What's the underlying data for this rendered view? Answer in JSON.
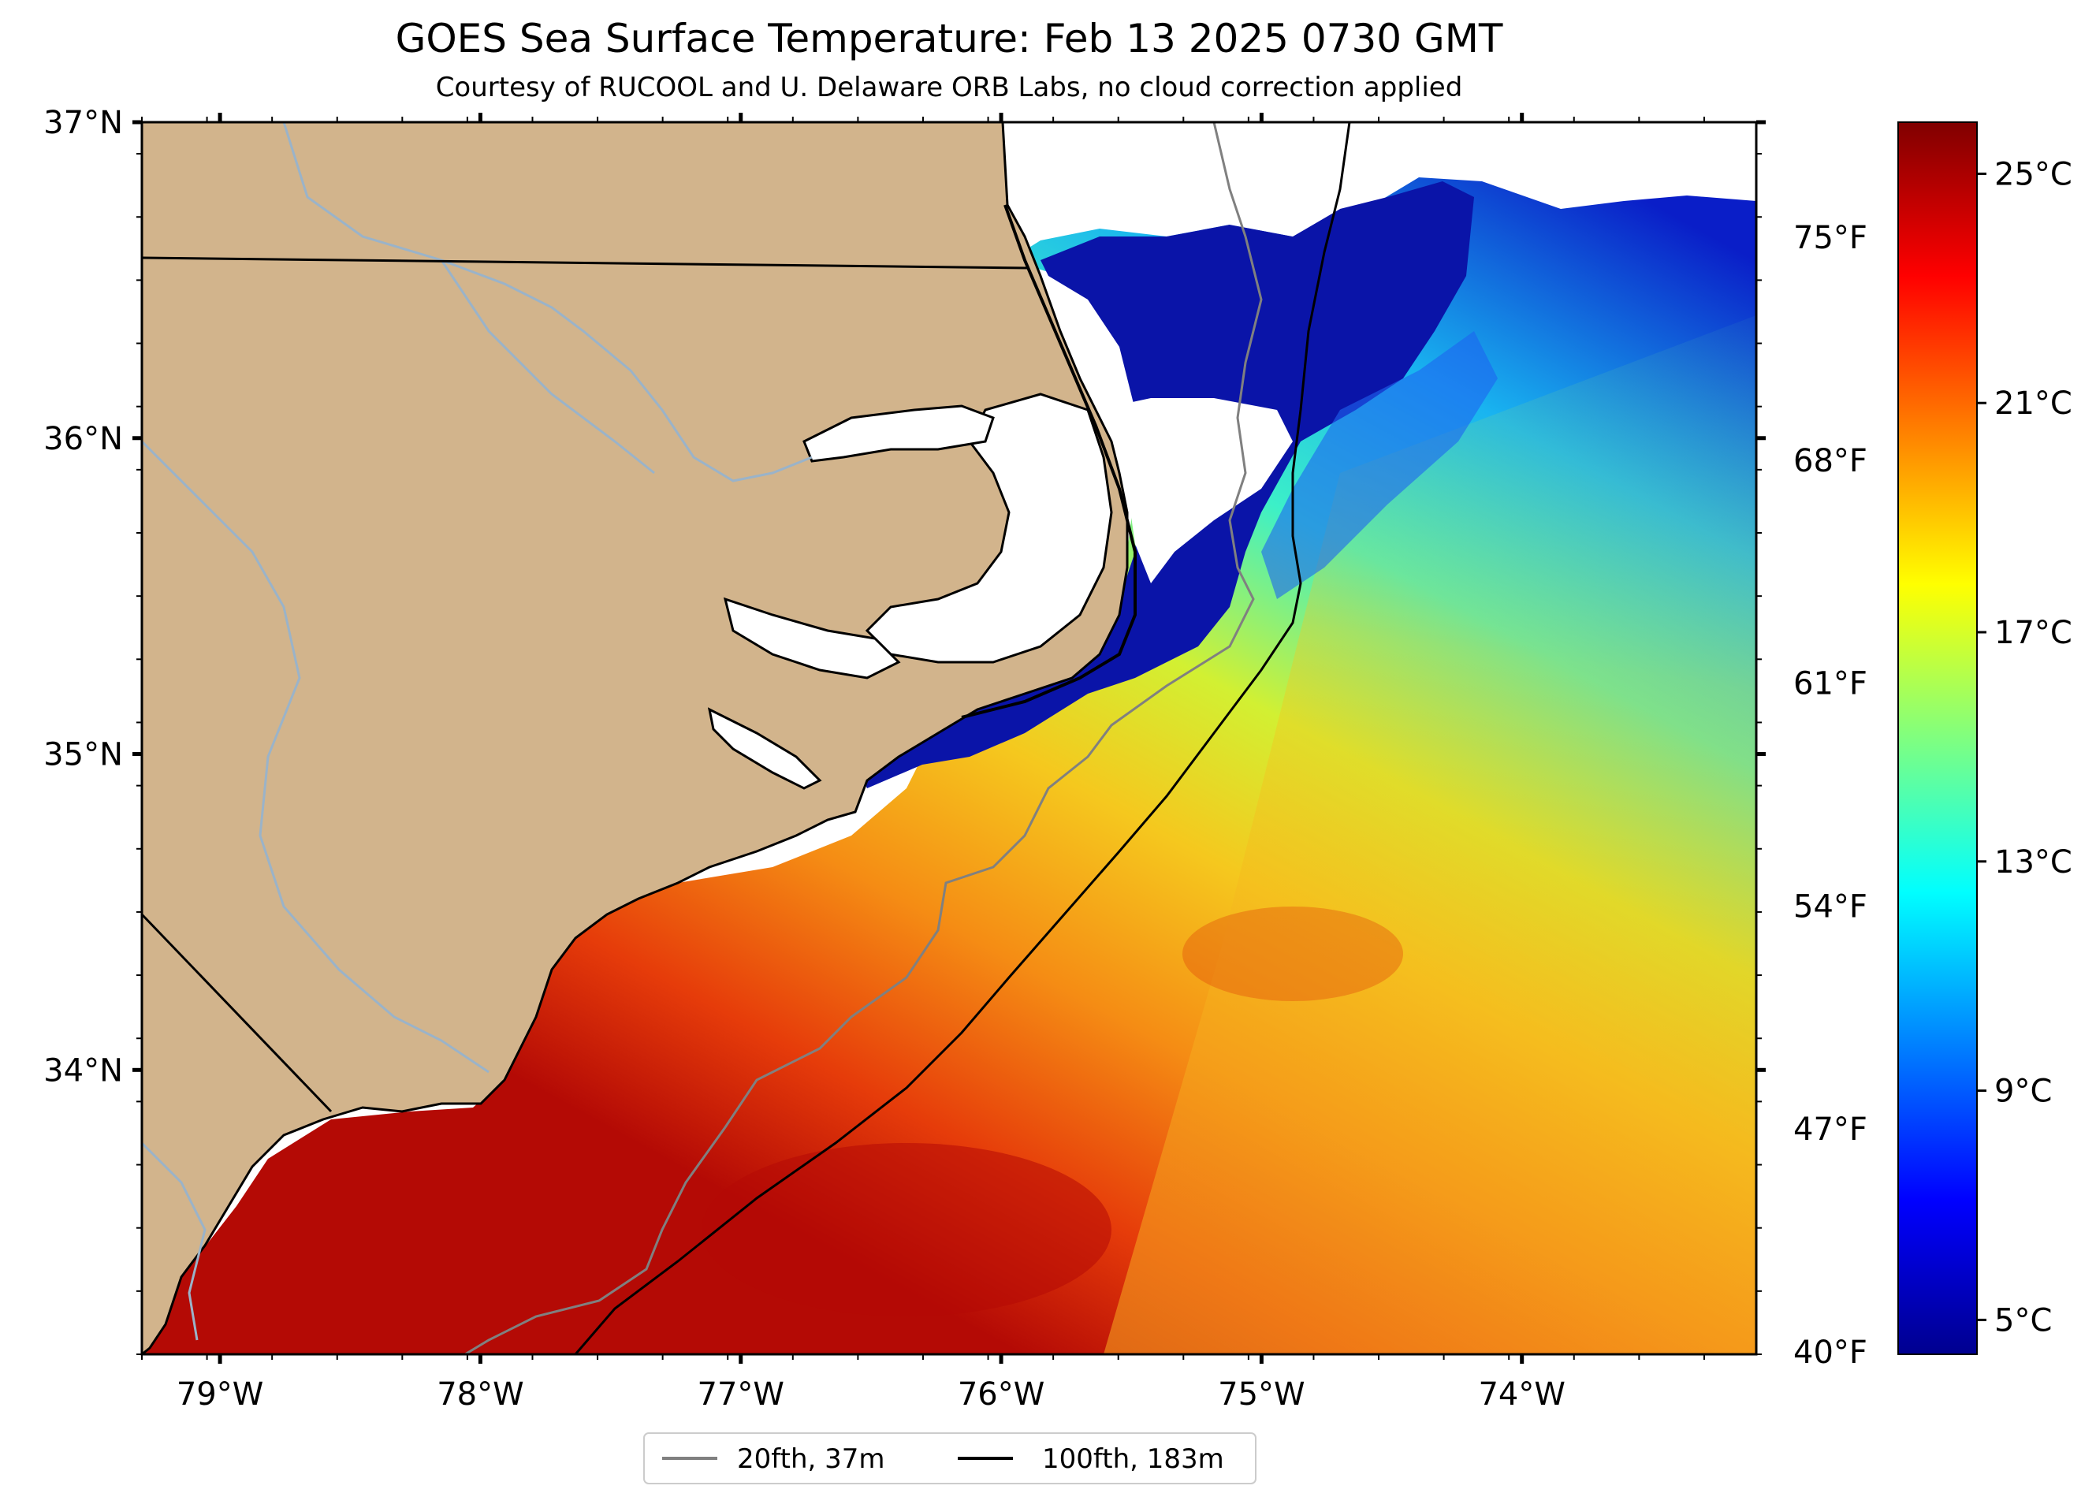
{
  "title": "GOES Sea Surface Temperature: Feb 13 2025 0730 GMT",
  "subtitle": "Courtesy of RUCOOL and U. Delaware ORB Labs, no cloud correction applied",
  "map": {
    "lon_range": [
      -79.3,
      -73.1
    ],
    "lat_range": [
      33.1,
      37.0
    ],
    "lat_ticks": [
      {
        "value": 37,
        "label": "37°N"
      },
      {
        "value": 36,
        "label": "36°N"
      },
      {
        "value": 35,
        "label": "35°N"
      },
      {
        "value": 34,
        "label": "34°N"
      }
    ],
    "lon_ticks": [
      {
        "value": -79,
        "label": "79°W"
      },
      {
        "value": -78,
        "label": "78°W"
      },
      {
        "value": -77,
        "label": "77°W"
      },
      {
        "value": -76,
        "label": "76°W"
      },
      {
        "value": -75,
        "label": "75°W"
      },
      {
        "value": -74,
        "label": "74°W"
      }
    ],
    "land_color": "#d2b48c",
    "isobath_20_color": "#808080",
    "isobath_100_color": "#000000",
    "river_color": "#9ab3c9"
  },
  "legend": {
    "items": [
      {
        "label": "20fth, 37m",
        "color": "#808080"
      },
      {
        "label": "100fth, 183m",
        "color": "#000000"
      }
    ]
  },
  "colorbar": {
    "colormap": "jet",
    "range_c": [
      4.4,
      25.9
    ],
    "celsius_ticks": [
      {
        "value": 25,
        "label": "25°C"
      },
      {
        "value": 21,
        "label": "21°C"
      },
      {
        "value": 17,
        "label": "17°C"
      },
      {
        "value": 13,
        "label": "13°C"
      },
      {
        "value": 9,
        "label": "9°C"
      },
      {
        "value": 5,
        "label": "5°C"
      }
    ],
    "fahrenheit_ticks": [
      {
        "value": 75,
        "label": "75°F"
      },
      {
        "value": 68,
        "label": "68°F"
      },
      {
        "value": 61,
        "label": "61°F"
      },
      {
        "value": 54,
        "label": "54°F"
      },
      {
        "value": 47,
        "label": "47°F"
      },
      {
        "value": 40,
        "label": "40°F"
      }
    ]
  }
}
